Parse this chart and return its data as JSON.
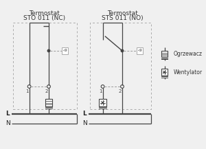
{
  "title1": "Termostat",
  "subtitle1": "STO 011 (NC)",
  "title2": "Termostat",
  "subtitle2": "STS 011 (NO)",
  "legend1": "Ogrzewacz",
  "legend2": "Wentylator",
  "bg_color": "#f0f0f0",
  "line_color": "#444444",
  "dash_color": "#999999",
  "font_size_title": 6.5,
  "font_size_label": 5.5
}
